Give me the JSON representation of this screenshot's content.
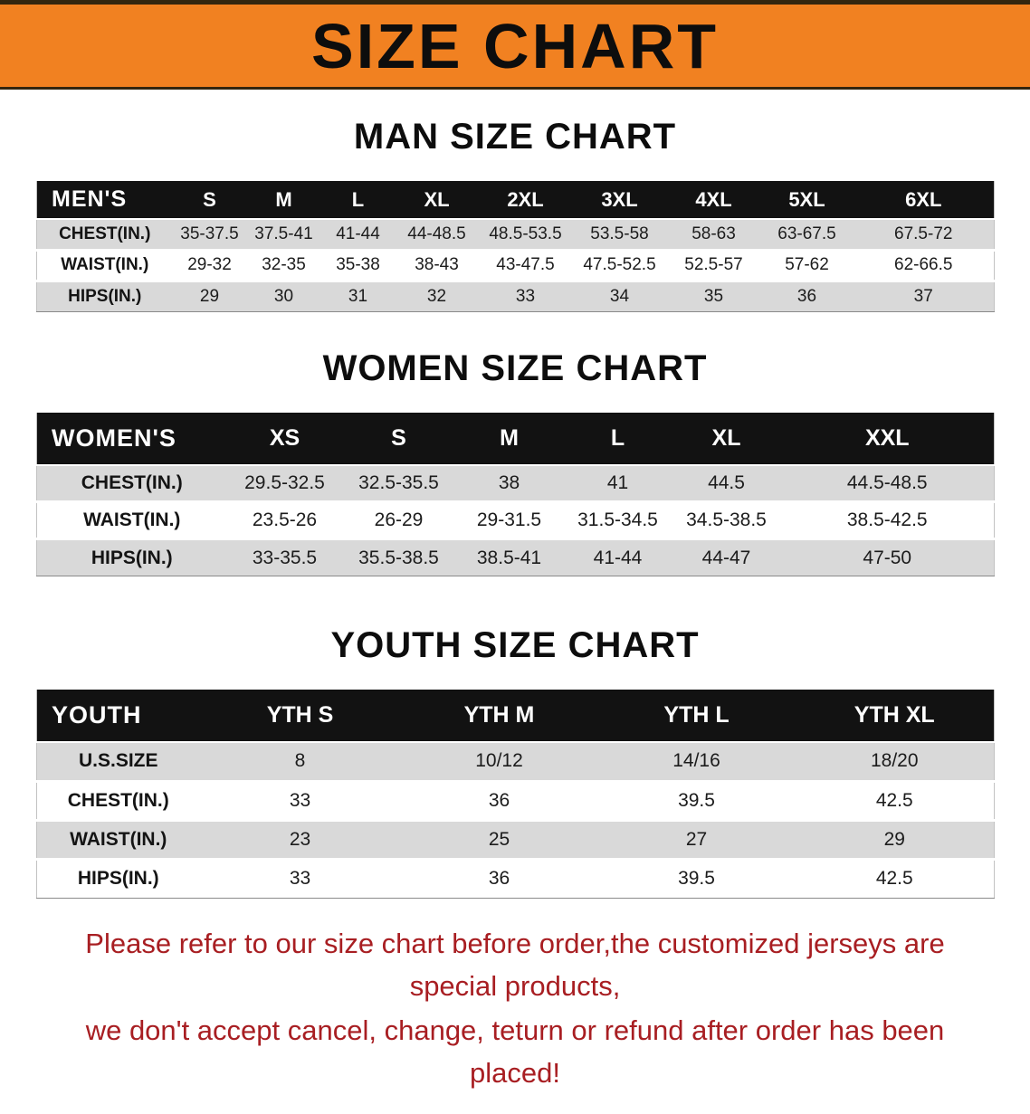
{
  "banner": {
    "title": "SIZE CHART"
  },
  "colors": {
    "banner_bg": "#f18121",
    "header_bg": "#121212",
    "row_alt_bg": "#d9d9d9",
    "footer_color": "#a81e22"
  },
  "chart_data": [
    {
      "type": "table",
      "title": "MAN SIZE CHART",
      "corner_label": "MEN'S",
      "columns": [
        "S",
        "M",
        "L",
        "XL",
        "2XL",
        "3XL",
        "4XL",
        "5XL",
        "6XL"
      ],
      "rows": [
        {
          "label": "CHEST(IN.)",
          "values": [
            "35-37.5",
            "37.5-41",
            "41-44",
            "44-48.5",
            "48.5-53.5",
            "53.5-58",
            "58-63",
            "63-67.5",
            "67.5-72"
          ]
        },
        {
          "label": "WAIST(IN.)",
          "values": [
            "29-32",
            "32-35",
            "35-38",
            "38-43",
            "43-47.5",
            "47.5-52.5",
            "52.5-57",
            "57-62",
            "62-66.5"
          ]
        },
        {
          "label": "HIPS(IN.)",
          "values": [
            "29",
            "30",
            "31",
            "32",
            "33",
            "34",
            "35",
            "36",
            "37"
          ]
        }
      ]
    },
    {
      "type": "table",
      "title": "WOMEN SIZE CHART",
      "corner_label": "WOMEN'S",
      "columns": [
        "XS",
        "S",
        "M",
        "L",
        "XL",
        "XXL"
      ],
      "rows": [
        {
          "label": "CHEST(IN.)",
          "values": [
            "29.5-32.5",
            "32.5-35.5",
            "38",
            "41",
            "44.5",
            "44.5-48.5"
          ]
        },
        {
          "label": "WAIST(IN.)",
          "values": [
            "23.5-26",
            "26-29",
            "29-31.5",
            "31.5-34.5",
            "34.5-38.5",
            "38.5-42.5"
          ]
        },
        {
          "label": "HIPS(IN.)",
          "values": [
            "33-35.5",
            "35.5-38.5",
            "38.5-41",
            "41-44",
            "44-47",
            "47-50"
          ]
        }
      ]
    },
    {
      "type": "table",
      "title": "YOUTH SIZE CHART",
      "corner_label": "YOUTH",
      "columns": [
        "YTH S",
        "YTH M",
        "YTH L",
        "YTH XL"
      ],
      "rows": [
        {
          "label": "U.S.SIZE",
          "values": [
            "8",
            "10/12",
            "14/16",
            "18/20"
          ]
        },
        {
          "label": "CHEST(IN.)",
          "values": [
            "33",
            "36",
            "39.5",
            "42.5"
          ]
        },
        {
          "label": "WAIST(IN.)",
          "values": [
            "23",
            "25",
            "27",
            "29"
          ]
        },
        {
          "label": "HIPS(IN.)",
          "values": [
            "33",
            "36",
            "39.5",
            "42.5"
          ]
        }
      ]
    }
  ],
  "footer": {
    "line1": "Please refer to our size chart before order,the customized jerseys are special products,",
    "line2": "we don't accept cancel, change, teturn or refund after order has been placed!"
  }
}
